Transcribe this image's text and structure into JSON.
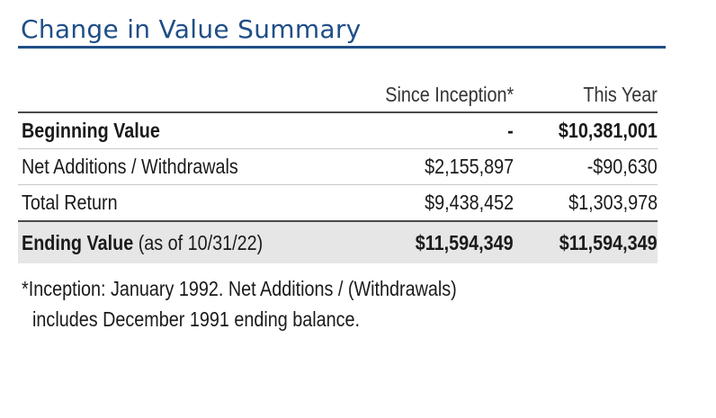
{
  "title": "Change in Value Summary",
  "table": {
    "headers": {
      "col_a": "Since Inception*",
      "col_b": "This Year"
    },
    "rows": [
      {
        "label": "Beginning Value",
        "since_inception": "-",
        "this_year": "$10,381,001"
      },
      {
        "label": "Net Additions / Withdrawals",
        "since_inception": "$2,155,897",
        "this_year": "-$90,630"
      },
      {
        "label": "Total Return",
        "since_inception": "$9,438,452",
        "this_year": "$1,303,978"
      }
    ],
    "ending": {
      "label": "Ending Value",
      "suffix": " (as of 10/31/22)",
      "since_inception": "$11,594,349",
      "this_year": "$11,594,349"
    }
  },
  "footnote": {
    "line1": "*Inception: January 1992. Net Additions / (Withdrawals)",
    "line2": "includes December 1991 ending balance."
  }
}
